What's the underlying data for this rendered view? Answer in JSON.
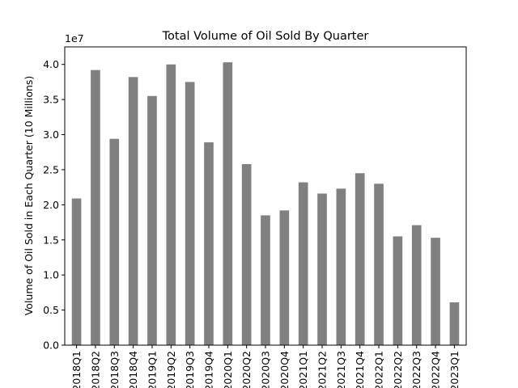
{
  "chart_data": {
    "type": "bar",
    "title": "Total Volume of Oil Sold By Quarter",
    "xlabel": "",
    "ylabel": "Volume of Oil Sold in Each Quarter (10 Millions)",
    "offset_text": "1e7",
    "ylim": [
      0,
      4.25
    ],
    "yticks": [
      "0.0",
      "0.5",
      "1.0",
      "1.5",
      "2.0",
      "2.5",
      "3.0",
      "3.5",
      "4.0"
    ],
    "bar_color": "#808080",
    "grid": false,
    "legend": "none",
    "categories": [
      "2018Q1",
      "2018Q2",
      "2018Q3",
      "2018Q4",
      "2019Q1",
      "2019Q2",
      "2019Q3",
      "2019Q4",
      "2020Q1",
      "2020Q2",
      "2020Q3",
      "2020Q4",
      "2021Q1",
      "2021Q2",
      "2021Q3",
      "2021Q4",
      "2022Q1",
      "2022Q2",
      "2022Q3",
      "2022Q4",
      "2023Q1"
    ],
    "values": [
      2.09,
      3.92,
      2.94,
      3.82,
      3.55,
      4.0,
      3.75,
      2.89,
      4.03,
      2.58,
      1.85,
      1.92,
      2.32,
      2.16,
      2.23,
      2.45,
      2.3,
      1.55,
      1.71,
      1.53,
      0.61
    ]
  }
}
